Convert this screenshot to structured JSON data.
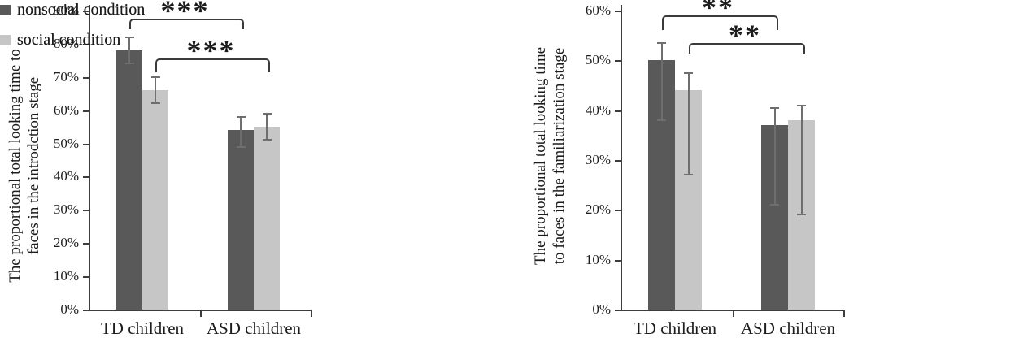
{
  "figure_title": "",
  "colors": {
    "nonsocial_bar": "#595959",
    "social_bar": "#c6c6c6",
    "axis": "#3d3d3d",
    "error_bar": "#6e6e6e",
    "bracket": "#3a3a3a",
    "text": "#1c1c1c",
    "background": "#ffffff"
  },
  "chart_data": [
    {
      "type": "bar",
      "panel": "introduction-stage",
      "ylabel_lines": [
        "The proportional total looking time to",
        "faces in the introdction stage"
      ],
      "categories": [
        "TD children",
        "ASD children"
      ],
      "series": [
        {
          "name": "nonsocial condition",
          "color": "#595959",
          "values": [
            78,
            54
          ],
          "error_low": [
            74,
            49
          ],
          "error_high": [
            82,
            58
          ]
        },
        {
          "name": "social condition",
          "color": "#c6c6c6",
          "values": [
            66,
            55
          ],
          "error_low": [
            62,
            51
          ],
          "error_high": [
            70,
            59
          ]
        }
      ],
      "ylim": [
        0,
        90
      ],
      "ytick_step": 10,
      "ytick_labels": [
        "0%",
        "10%",
        "20%",
        "30%",
        "40%",
        "50%",
        "60%",
        "70%",
        "80%",
        "90%"
      ],
      "grid": false,
      "legend_position": "right",
      "legend": [
        "nonsocial condition",
        "social condition"
      ],
      "significance": [
        {
          "label": "***",
          "x1_series": 0,
          "x1_cat": 0,
          "x2_series": 0,
          "x2_cat": 1,
          "y_percent": 87.5,
          "drop": 11
        },
        {
          "label": "***",
          "x1_series": 1,
          "x1_cat": 0,
          "x2_series": 1,
          "x2_cat": 1,
          "y_percent": 75.5,
          "drop": 15
        }
      ]
    },
    {
      "type": "bar",
      "panel": "familiarization-stage",
      "ylabel_lines": [
        "The proportional total looking time",
        "to faces in the familiarization stage"
      ],
      "categories": [
        "TD children",
        "ASD children"
      ],
      "series": [
        {
          "name": "nonsocial condition",
          "color": "#595959",
          "values": [
            50,
            37
          ],
          "error_low": [
            38,
            21
          ],
          "error_high": [
            53.5,
            40.5
          ]
        },
        {
          "name": "social condition",
          "color": "#c6c6c6",
          "values": [
            44,
            38
          ],
          "error_low": [
            27,
            19
          ],
          "error_high": [
            47.5,
            41
          ]
        }
      ],
      "ylim": [
        0,
        60
      ],
      "ytick_step": 10,
      "ytick_labels": [
        "0%",
        "10%",
        "20%",
        "30%",
        "40%",
        "50%",
        "60%"
      ],
      "grid": false,
      "legend_position": "right",
      "legend": [
        "nonsocial condition",
        "social condition"
      ],
      "significance": [
        {
          "label": "**",
          "x1_series": 0,
          "x1_cat": 0,
          "x2_series": 0,
          "x2_cat": 1,
          "y_percent": 59,
          "drop": 16
        },
        {
          "label": "**",
          "x1_series": 1,
          "x1_cat": 0,
          "x2_series": 1,
          "x2_cat": 1,
          "y_percent": 53.5,
          "drop": 11
        }
      ]
    }
  ]
}
